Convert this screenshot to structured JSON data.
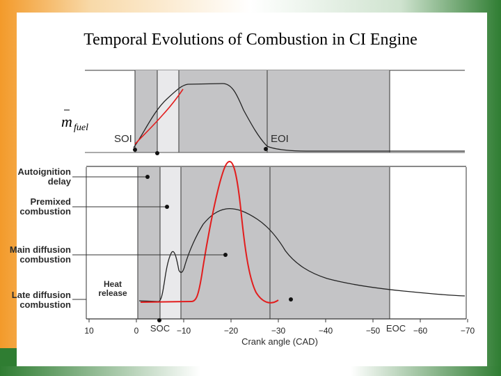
{
  "slide": {
    "title": "Temporal Evolutions of Combustion in CI Engine"
  },
  "fuel_panel": {
    "mfuel_symbol": "m",
    "mfuel_subscript": "fuel",
    "soi_label": "SOI",
    "eoi_label": "EOI"
  },
  "heat_panel": {
    "phase_labels": [
      {
        "line1": "Autoignition",
        "line2": "delay"
      },
      {
        "line1": "Premixed",
        "line2": "combustion"
      },
      {
        "line1": "Main diffusion",
        "line2": "combustion"
      },
      {
        "line1": "Late diffusion",
        "line2": "combustion"
      }
    ],
    "heat_release_label": {
      "line1": "Heat",
      "line2": "release"
    },
    "soc_label": "SOC",
    "eoc_label": "EOC",
    "x_axis_label": "Crank angle (CAD)",
    "x_ticks": [
      "10",
      "0",
      "−10",
      "−20",
      "−30",
      "−40",
      "−50",
      "−60",
      "−70"
    ]
  },
  "colors": {
    "shade_dark": "#c4c4c6",
    "shade_light": "#e9e9eb",
    "red_curve": "#e21d1d",
    "black_curve": "#222222"
  }
}
